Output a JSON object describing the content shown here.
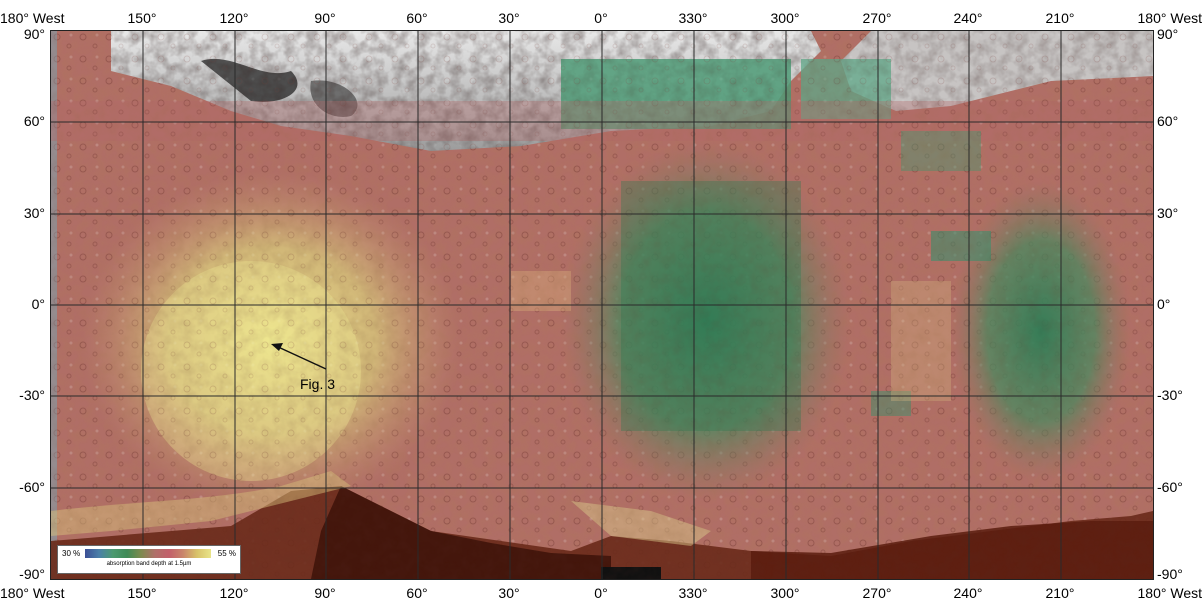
{
  "axes": {
    "top_labels": [
      "150°",
      "120°",
      "90°",
      "60°",
      "30°",
      "0°",
      "330°",
      "300°",
      "270°",
      "240°",
      "210°"
    ],
    "bottom_labels": [
      "150°",
      "120°",
      "90°",
      "60°",
      "30°",
      "0°",
      "330°",
      "300°",
      "270°",
      "240°",
      "210°"
    ],
    "corner_top_left": "180° West",
    "corner_top_right": "180° West",
    "corner_bottom_left": "180° West",
    "corner_bottom_right": "180° West",
    "left_labels": [
      "90°",
      "60°",
      "30°",
      "0°",
      "-30°",
      "-60°",
      "-90°"
    ],
    "right_labels": [
      "90°",
      "60°",
      "30°",
      "0°",
      "-30°",
      "-60°",
      "-90°"
    ],
    "longitudes_west": [
      150,
      120,
      90,
      60,
      30,
      0,
      330,
      300,
      270,
      240,
      210
    ],
    "latitudes": [
      90,
      60,
      30,
      0,
      -30,
      -60,
      -90
    ]
  },
  "annotation": {
    "label": "Fig. 3"
  },
  "legend": {
    "min_label": "30 %",
    "max_label": "55 %",
    "caption": "absorption band depth at 1.5µm"
  },
  "colors": {
    "high_absorption": "#e6e08a",
    "mid_absorption": "#b46e66",
    "low_absorption": "#3e8a5c",
    "polar_gray": "#b4b4b4",
    "shadow": "#5a1e10"
  }
}
